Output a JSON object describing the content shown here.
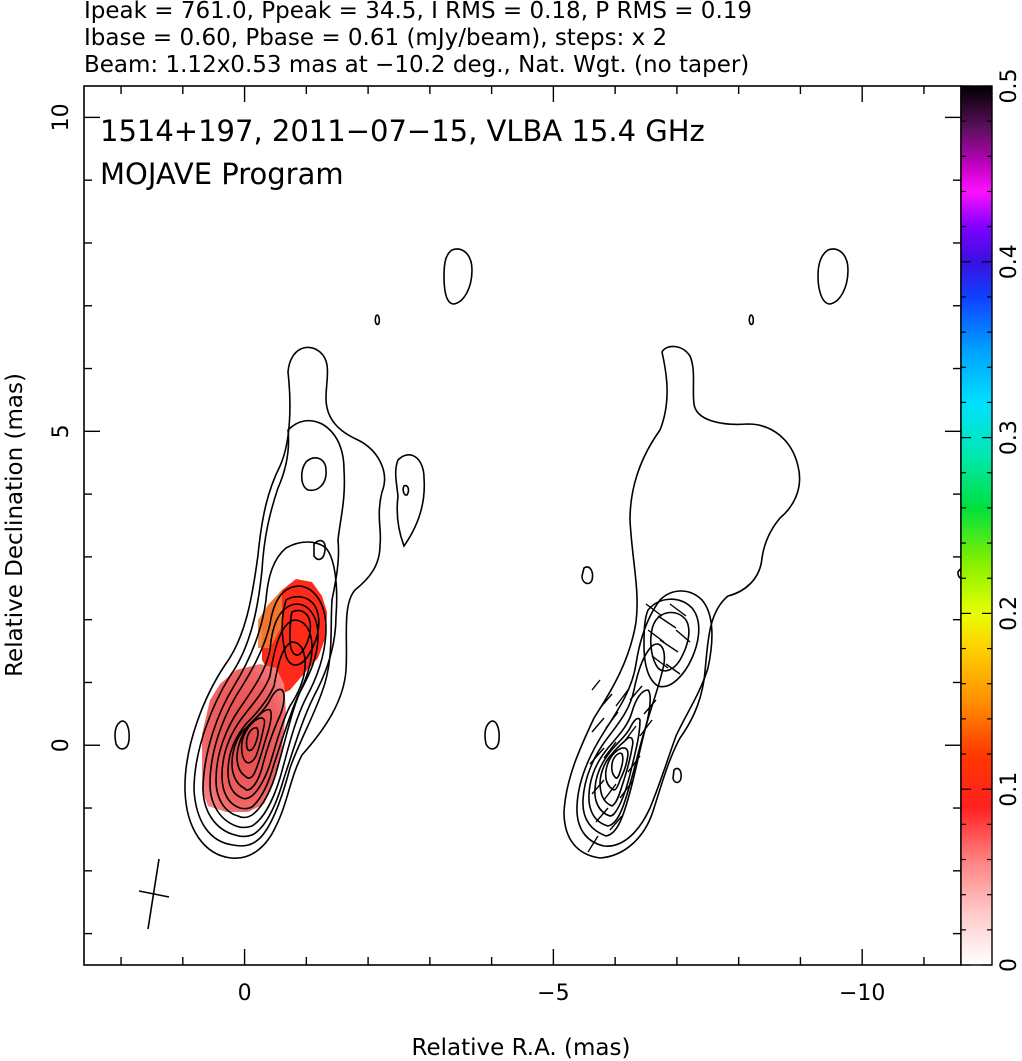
{
  "header": {
    "line1": "Ipeak = 761.0, Ppeak = 34.5, I RMS = 0.18, P RMS = 0.19",
    "line2": "Ibase = 0.60, Pbase = 0.61 (mJy/beam), steps: x 2",
    "line3": "Beam: 1.12x0.53 mas at −10.2 deg., Nat. Wgt. (no taper)"
  },
  "annotation": {
    "line1": "1514+197, 2011−07−15, VLBA 15.4 GHz",
    "line2": "MOJAVE Program"
  },
  "colors": {
    "contour": "#000000",
    "pol_fill_core": "#f04a4a",
    "pol_fill_knot": "#ff2a1a",
    "pol_fill_edge": "#f07820"
  },
  "chart_data": {
    "type": "contour",
    "title": "1514+197, 2011−07−15, VLBA 15.4 GHz",
    "subtitle": "MOJAVE Program",
    "xlabel": "Relative R.A. (mas)",
    "ylabel": "Relative Declination (mas)",
    "xlim": [
      2.6,
      -11.6
    ],
    "ylim": [
      -3.5,
      10.5
    ],
    "x_ticks": [
      0,
      -5,
      -10
    ],
    "x_tick_labels": [
      "0",
      "−5",
      "−10"
    ],
    "y_ticks": [
      0,
      5,
      10
    ],
    "y_tick_labels": [
      "0",
      "5",
      "10"
    ],
    "grid": false,
    "beam": {
      "major_mas": 1.12,
      "minor_mas": 0.53,
      "pa_deg": -10.2
    },
    "stats": {
      "Ipeak_mJy_per_beam": 761.0,
      "Ppeak_mJy_per_beam": 34.5,
      "I_RMS": 0.18,
      "P_RMS": 0.19,
      "Ibase": 0.6,
      "Pbase": 0.61,
      "contour_step_factor": 2
    },
    "panels": [
      "total intensity contours + fractional polarization color",
      "total intensity contours + EVPA ticks"
    ],
    "colorbar": {
      "min": 0,
      "max": 0.5,
      "ticks": [
        0,
        0.1,
        0.2,
        0.3,
        0.4,
        0.5
      ],
      "tick_labels": [
        "0",
        "0.1",
        "0.2",
        "0.3",
        "0.4",
        "0.5"
      ]
    }
  }
}
